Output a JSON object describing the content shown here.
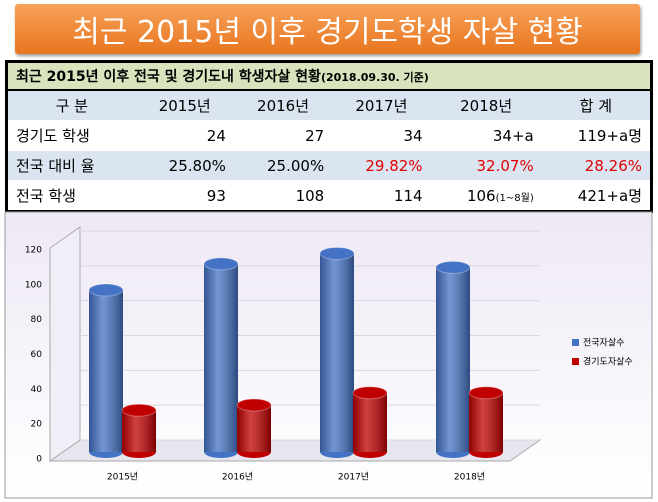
{
  "banner": {
    "title": "최근 2015년 이후 경기도학생 자살 현황"
  },
  "table": {
    "title": "최근 2015년 이후 전국 및 경기도내 학생자살 현황",
    "note": "(2018.09.30. 기준)",
    "header": [
      "구 분",
      "2015년",
      "2016년",
      "2017년",
      "2018년",
      "합 계"
    ],
    "rows": [
      [
        "경기도 학생",
        "24",
        "27",
        "34",
        "34+a",
        "119+a명"
      ],
      [
        "전국 대비 율",
        "25.80%",
        "25.00%",
        "29.82%",
        "32.07%",
        "28.26%"
      ],
      [
        "전국 학생",
        "93",
        "108",
        "114",
        "106",
        "421+a명"
      ]
    ],
    "cell_note": "(1~8월)"
  },
  "chart_data": {
    "type": "bar",
    "categories": [
      "2015년",
      "2016년",
      "2017년",
      "2018년"
    ],
    "series": [
      {
        "name": "전국자살수",
        "color": "#4472c4",
        "values": [
          93,
          108,
          114,
          106
        ]
      },
      {
        "name": "경기도자살수",
        "color": "#c00000",
        "values": [
          24,
          27,
          34,
          34
        ]
      }
    ],
    "ylim": [
      0,
      120
    ],
    "yticks": [
      0,
      20,
      40,
      60,
      80,
      100,
      120
    ],
    "legend": "right"
  }
}
